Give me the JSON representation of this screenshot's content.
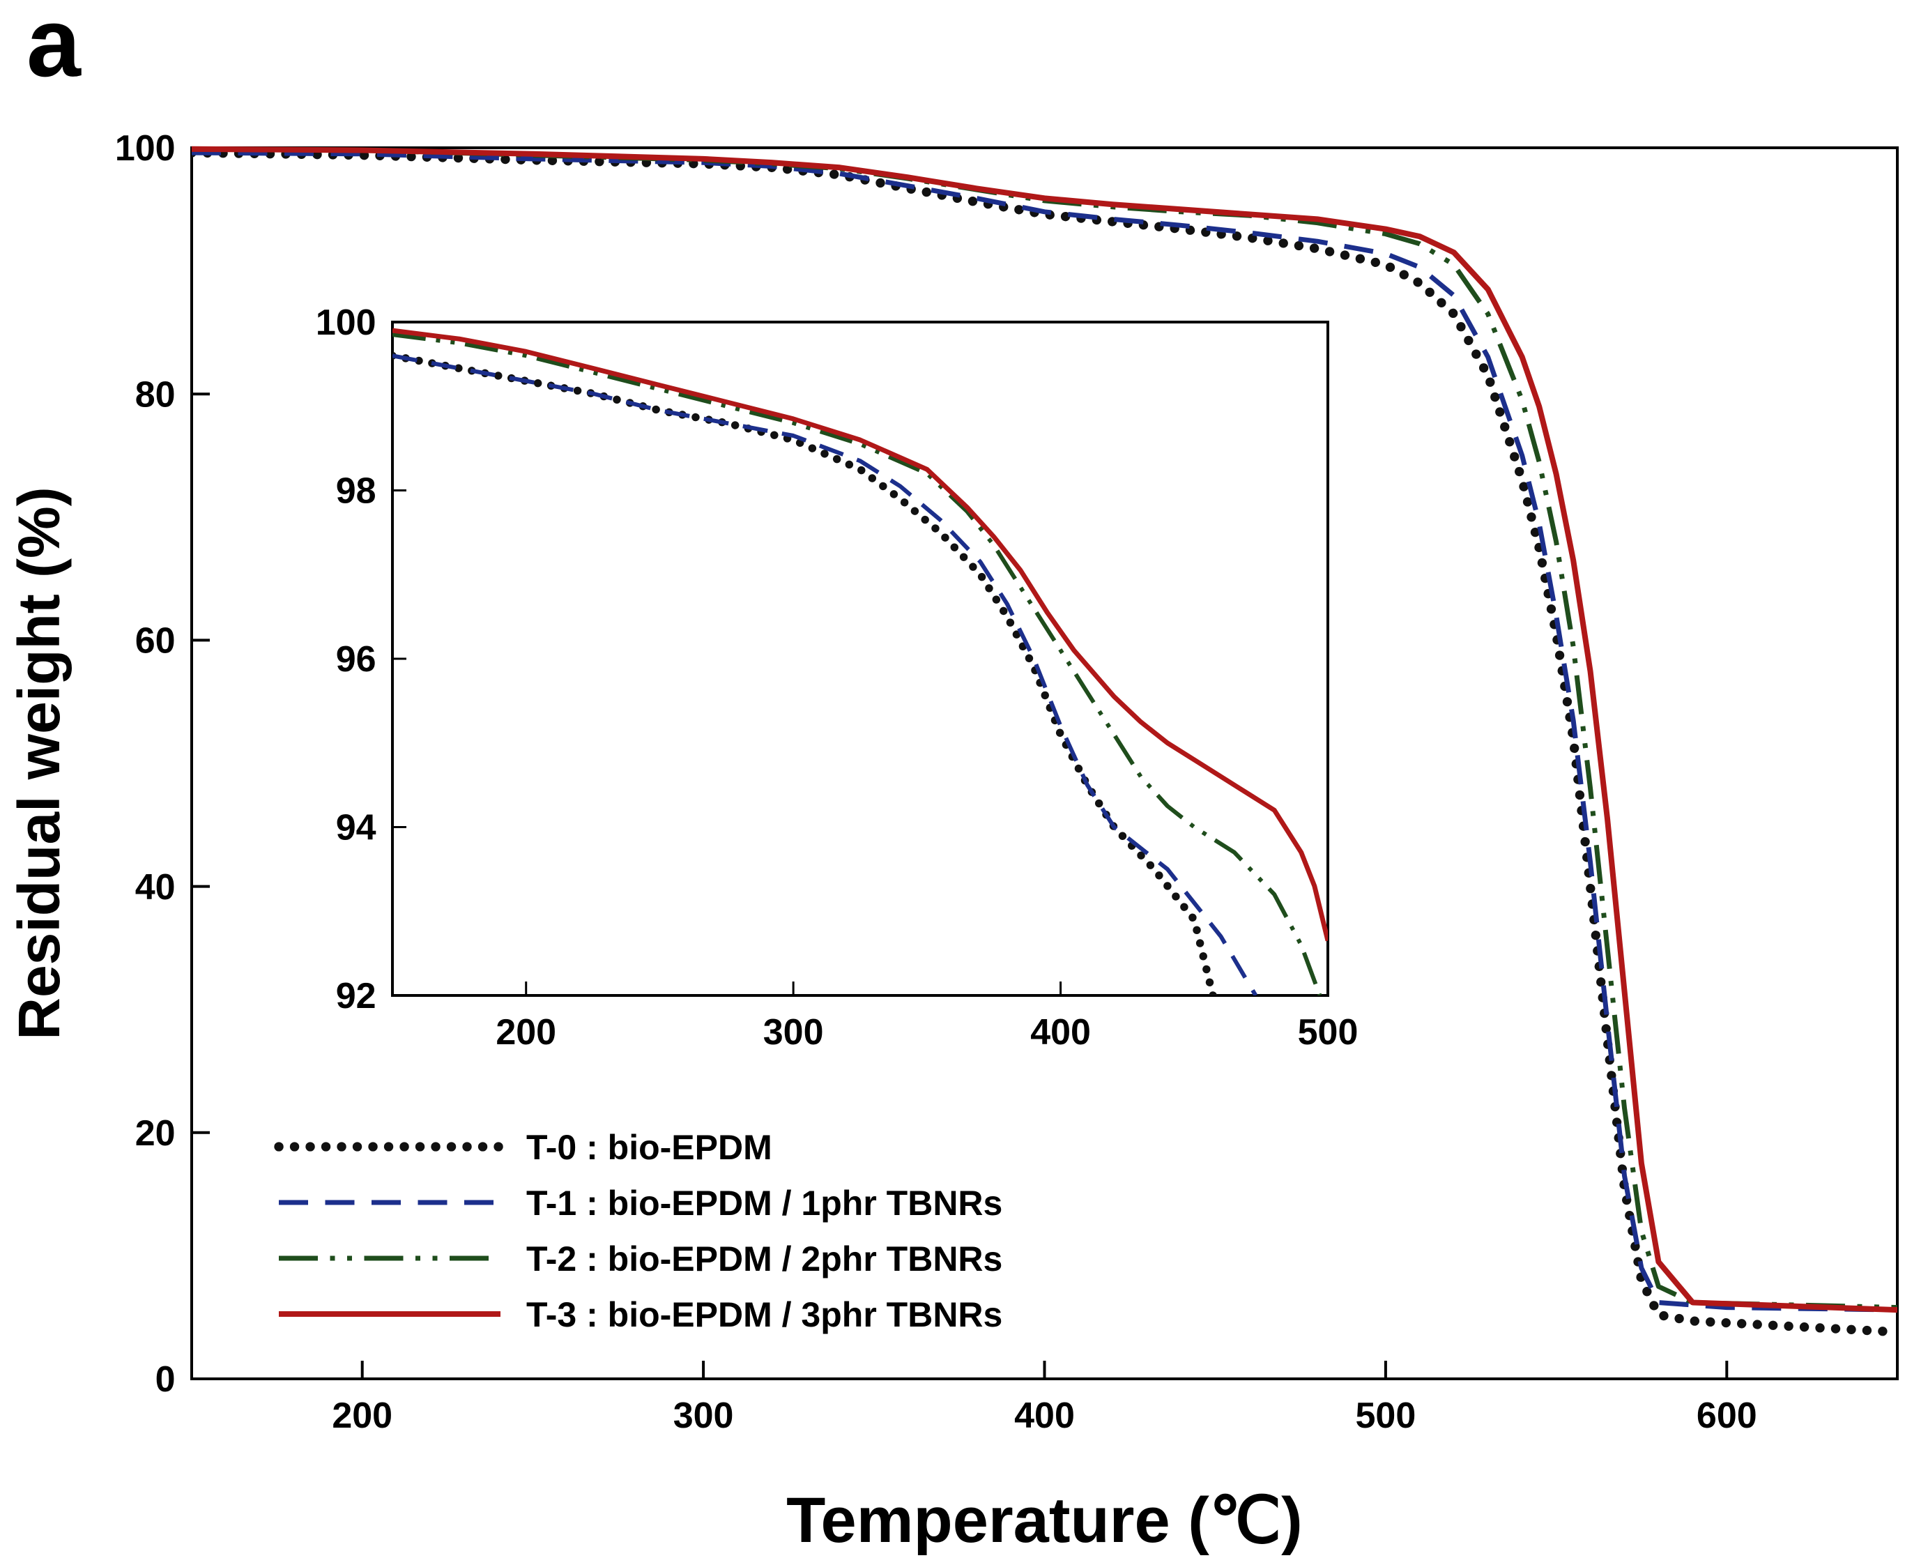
{
  "panel_label": "a",
  "chart_data": [
    {
      "type": "line",
      "role": "main",
      "xlabel": "Temperature (℃)",
      "ylabel": "Residual weight (%)",
      "xlim": [
        150,
        650
      ],
      "ylim": [
        0,
        100
      ],
      "xticks": [
        200,
        300,
        400,
        500,
        600
      ],
      "yticks": [
        0,
        20,
        40,
        60,
        80,
        100
      ],
      "legend": {
        "placement": "bottom-left"
      },
      "series": [
        {
          "name": "T-0 : bio-EPDM",
          "color": "#111111",
          "style": "dotted",
          "points": [
            [
              150,
              99.6
            ],
            [
              200,
              99.4
            ],
            [
              250,
              99.0
            ],
            [
              300,
              98.7
            ],
            [
              320,
              98.4
            ],
            [
              340,
              97.8
            ],
            [
              360,
              96.7
            ],
            [
              380,
              95.6
            ],
            [
              400,
              94.6
            ],
            [
              420,
              94.0
            ],
            [
              440,
              93.4
            ],
            [
              460,
              92.7
            ],
            [
              480,
              91.8
            ],
            [
              500,
              90.5
            ],
            [
              510,
              89.0
            ],
            [
              520,
              86.5
            ],
            [
              530,
              81.5
            ],
            [
              540,
              73.0
            ],
            [
              545,
              67.5
            ],
            [
              550,
              60.5
            ],
            [
              555,
              52.0
            ],
            [
              560,
              40.0
            ],
            [
              565,
              27.5
            ],
            [
              570,
              15.5
            ],
            [
              575,
              8.0
            ],
            [
              580,
              5.2
            ],
            [
              590,
              4.7
            ],
            [
              610,
              4.4
            ],
            [
              630,
              4.1
            ],
            [
              650,
              3.8
            ]
          ]
        },
        {
          "name": "T-1 : bio-EPDM / 1phr TBNRs",
          "color": "#1c2f8c",
          "style": "dashed",
          "points": [
            [
              150,
              99.6
            ],
            [
              200,
              99.5
            ],
            [
              250,
              99.1
            ],
            [
              300,
              98.8
            ],
            [
              320,
              98.5
            ],
            [
              340,
              97.9
            ],
            [
              360,
              96.9
            ],
            [
              380,
              95.9
            ],
            [
              400,
              94.8
            ],
            [
              420,
              94.2
            ],
            [
              440,
              93.7
            ],
            [
              460,
              93.1
            ],
            [
              480,
              92.4
            ],
            [
              500,
              91.4
            ],
            [
              510,
              90.3
            ],
            [
              520,
              88.0
            ],
            [
              530,
              83.0
            ],
            [
              540,
              75.0
            ],
            [
              545,
              69.5
            ],
            [
              550,
              62.0
            ],
            [
              555,
              53.5
            ],
            [
              560,
              42.0
            ],
            [
              565,
              29.0
            ],
            [
              570,
              16.5
            ],
            [
              575,
              9.0
            ],
            [
              580,
              6.2
            ],
            [
              600,
              5.8
            ],
            [
              650,
              5.6
            ]
          ]
        },
        {
          "name": "T-2 : bio-EPDM / 2phr TBNRs",
          "color": "#1f4d1c",
          "style": "dash-dot-dot",
          "points": [
            [
              150,
              99.9
            ],
            [
              200,
              99.8
            ],
            [
              250,
              99.4
            ],
            [
              300,
              99.0
            ],
            [
              320,
              98.7
            ],
            [
              340,
              98.3
            ],
            [
              360,
              97.5
            ],
            [
              380,
              96.6
            ],
            [
              400,
              95.7
            ],
            [
              420,
              95.2
            ],
            [
              440,
              94.8
            ],
            [
              460,
              94.5
            ],
            [
              480,
              93.9
            ],
            [
              500,
              93.0
            ],
            [
              510,
              92.2
            ],
            [
              520,
              90.5
            ],
            [
              530,
              86.5
            ],
            [
              540,
              79.5
            ],
            [
              545,
              74.5
            ],
            [
              550,
              68.0
            ],
            [
              555,
              59.5
            ],
            [
              560,
              48.0
            ],
            [
              565,
              35.0
            ],
            [
              570,
              22.0
            ],
            [
              575,
              12.0
            ],
            [
              580,
              7.5
            ],
            [
              590,
              6.2
            ],
            [
              650,
              5.8
            ]
          ]
        },
        {
          "name": "T-3 : bio-EPDM / 3phr TBNRs",
          "color": "#b01818",
          "style": "solid",
          "points": [
            [
              150,
              99.9
            ],
            [
              200,
              99.8
            ],
            [
              250,
              99.5
            ],
            [
              300,
              99.1
            ],
            [
              320,
              98.8
            ],
            [
              340,
              98.4
            ],
            [
              360,
              97.6
            ],
            [
              380,
              96.7
            ],
            [
              400,
              95.9
            ],
            [
              420,
              95.4
            ],
            [
              440,
              95.0
            ],
            [
              460,
              94.6
            ],
            [
              480,
              94.2
            ],
            [
              500,
              93.4
            ],
            [
              510,
              92.8
            ],
            [
              520,
              91.5
            ],
            [
              530,
              88.5
            ],
            [
              540,
              83.0
            ],
            [
              545,
              79.0
            ],
            [
              550,
              73.5
            ],
            [
              555,
              66.5
            ],
            [
              560,
              57.5
            ],
            [
              565,
              45.5
            ],
            [
              570,
              31.5
            ],
            [
              575,
              17.5
            ],
            [
              580,
              9.5
            ],
            [
              590,
              6.2
            ],
            [
              650,
              5.6
            ]
          ]
        }
      ]
    },
    {
      "type": "line",
      "role": "inset",
      "xlim": [
        150,
        500
      ],
      "ylim": [
        92,
        100
      ],
      "xticks": [
        200,
        300,
        400,
        500
      ],
      "yticks": [
        92,
        94,
        96,
        98,
        100
      ],
      "series": [
        {
          "name": "T-0 : bio-EPDM",
          "color": "#111111",
          "style": "dotted",
          "points": [
            [
              150,
              99.6
            ],
            [
              175,
              99.45
            ],
            [
              200,
              99.3
            ],
            [
              225,
              99.15
            ],
            [
              250,
              98.95
            ],
            [
              275,
              98.8
            ],
            [
              300,
              98.6
            ],
            [
              325,
              98.25
            ],
            [
              340,
              97.9
            ],
            [
              355,
              97.5
            ],
            [
              370,
              97.0
            ],
            [
              380,
              96.5
            ],
            [
              390,
              95.9
            ],
            [
              400,
              95.1
            ],
            [
              410,
              94.5
            ],
            [
              420,
              94.0
            ],
            [
              435,
              93.5
            ],
            [
              450,
              92.9
            ],
            [
              457,
              92.0
            ]
          ]
        },
        {
          "name": "T-1 : bio-EPDM / 1phr TBNRs",
          "color": "#1c2f8c",
          "style": "dashed",
          "points": [
            [
              150,
              99.6
            ],
            [
              175,
              99.45
            ],
            [
              200,
              99.3
            ],
            [
              225,
              99.15
            ],
            [
              250,
              98.95
            ],
            [
              275,
              98.8
            ],
            [
              300,
              98.65
            ],
            [
              325,
              98.35
            ],
            [
              340,
              98.05
            ],
            [
              355,
              97.65
            ],
            [
              370,
              97.15
            ],
            [
              380,
              96.65
            ],
            [
              390,
              96.0
            ],
            [
              400,
              95.2
            ],
            [
              410,
              94.5
            ],
            [
              420,
              94.0
            ],
            [
              440,
              93.5
            ],
            [
              460,
              92.7
            ],
            [
              473,
              92.0
            ]
          ]
        },
        {
          "name": "T-2 : bio-EPDM / 2phr TBNRs",
          "color": "#1f4d1c",
          "style": "dash-dot-dot",
          "points": [
            [
              150,
              99.85
            ],
            [
              175,
              99.75
            ],
            [
              200,
              99.6
            ],
            [
              225,
              99.4
            ],
            [
              250,
              99.2
            ],
            [
              275,
              99.0
            ],
            [
              300,
              98.8
            ],
            [
              325,
              98.55
            ],
            [
              350,
              98.2
            ],
            [
              365,
              97.75
            ],
            [
              375,
              97.35
            ],
            [
              390,
              96.6
            ],
            [
              400,
              96.1
            ],
            [
              410,
              95.6
            ],
            [
              420,
              95.1
            ],
            [
              430,
              94.6
            ],
            [
              440,
              94.25
            ],
            [
              450,
              94.0
            ],
            [
              465,
              93.7
            ],
            [
              480,
              93.2
            ],
            [
              490,
              92.6
            ],
            [
              497,
              92.0
            ]
          ]
        },
        {
          "name": "T-3 : bio-EPDM / 3phr TBNRs",
          "color": "#b01818",
          "style": "solid",
          "points": [
            [
              150,
              99.9
            ],
            [
              175,
              99.8
            ],
            [
              200,
              99.65
            ],
            [
              225,
              99.45
            ],
            [
              250,
              99.25
            ],
            [
              275,
              99.05
            ],
            [
              300,
              98.85
            ],
            [
              325,
              98.6
            ],
            [
              350,
              98.25
            ],
            [
              365,
              97.8
            ],
            [
              375,
              97.45
            ],
            [
              385,
              97.05
            ],
            [
              395,
              96.55
            ],
            [
              405,
              96.1
            ],
            [
              420,
              95.55
            ],
            [
              430,
              95.25
            ],
            [
              440,
              95.0
            ],
            [
              455,
              94.7
            ],
            [
              470,
              94.4
            ],
            [
              480,
              94.2
            ],
            [
              490,
              93.7
            ],
            [
              495,
              93.3
            ],
            [
              500,
              92.65
            ]
          ]
        }
      ]
    }
  ]
}
